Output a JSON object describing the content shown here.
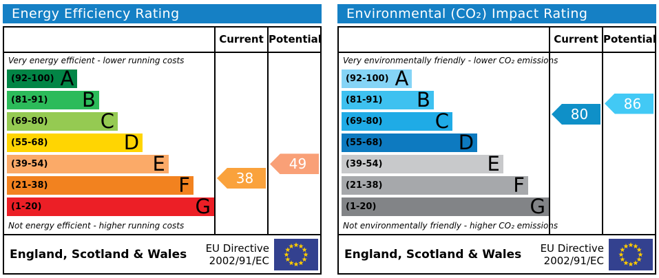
{
  "theme": {
    "header_bg": "#1580c5",
    "border": "#000000",
    "flag_bg": "#33418f",
    "flag_star": "#ffcc00"
  },
  "chart_data": [
    {
      "type": "bar",
      "orientation": "horizontal",
      "title": "Energy Efficiency Rating",
      "columns": {
        "current": "Current",
        "potential": "Potential"
      },
      "top_note": "Very energy efficient - lower running costs",
      "bottom_note": "Not energy efficient - higher running costs",
      "bands": [
        {
          "letter": "A",
          "range_label": "(92-100)",
          "min": 92,
          "max": 100,
          "color": "#028546",
          "length_pct": 34
        },
        {
          "letter": "B",
          "range_label": "(81-91)",
          "min": 81,
          "max": 91,
          "color": "#2cbb5a",
          "length_pct": 44.5
        },
        {
          "letter": "C",
          "range_label": "(69-80)",
          "min": 69,
          "max": 80,
          "color": "#95ca52",
          "length_pct": 53.5
        },
        {
          "letter": "D",
          "range_label": "(55-68)",
          "min": 55,
          "max": 68,
          "color": "#ffd502",
          "length_pct": 65.5
        },
        {
          "letter": "E",
          "range_label": "(39-54)",
          "min": 39,
          "max": 54,
          "color": "#fbaa68",
          "length_pct": 78
        },
        {
          "letter": "F",
          "range_label": "(21-38)",
          "min": 21,
          "max": 38,
          "color": "#f2821f",
          "length_pct": 90
        },
        {
          "letter": "G",
          "range_label": "(1-20)",
          "min": 1,
          "max": 20,
          "color": "#ec1f26",
          "length_pct": 100
        }
      ],
      "markers": {
        "current": {
          "label": "Current",
          "value": 38,
          "band": "F",
          "color": "#faa23c"
        },
        "potential": {
          "label": "Potential",
          "value": 49,
          "band": "E",
          "color": "#f9a077"
        }
      },
      "footer": {
        "region": "England, Scotland & Wales",
        "directive_line1": "EU Directive",
        "directive_line2": "2002/91/EC",
        "flag": "eu-flag"
      }
    },
    {
      "type": "bar",
      "orientation": "horizontal",
      "title": "Environmental (CO₂) Impact Rating",
      "columns": {
        "current": "Current",
        "potential": "Potential"
      },
      "top_note": "Very environmentally friendly - lower CO₂ emissions",
      "bottom_note": "Not environmentally friendly - higher CO₂ emissions",
      "bands": [
        {
          "letter": "A",
          "range_label": "(92-100)",
          "min": 92,
          "max": 100,
          "color": "#85d4f6",
          "length_pct": 34
        },
        {
          "letter": "B",
          "range_label": "(81-91)",
          "min": 81,
          "max": 91,
          "color": "#3ec1f0",
          "length_pct": 44.5
        },
        {
          "letter": "C",
          "range_label": "(69-80)",
          "min": 69,
          "max": 80,
          "color": "#1fabe6",
          "length_pct": 53.5
        },
        {
          "letter": "D",
          "range_label": "(55-68)",
          "min": 55,
          "max": 68,
          "color": "#0d7ac0",
          "length_pct": 65.5
        },
        {
          "letter": "E",
          "range_label": "(39-54)",
          "min": 39,
          "max": 54,
          "color": "#c8c9cb",
          "length_pct": 78
        },
        {
          "letter": "F",
          "range_label": "(21-38)",
          "min": 21,
          "max": 38,
          "color": "#a6a8ab",
          "length_pct": 90
        },
        {
          "letter": "G",
          "range_label": "(1-20)",
          "min": 1,
          "max": 20,
          "color": "#828487",
          "length_pct": 100
        }
      ],
      "markers": {
        "current": {
          "label": "Current",
          "value": 80,
          "band": "C",
          "color": "#0f90c8"
        },
        "potential": {
          "label": "Potential",
          "value": 86,
          "band": "B",
          "color": "#42c9f5"
        }
      },
      "footer": {
        "region": "England, Scotland & Wales",
        "directive_line1": "EU Directive",
        "directive_line2": "2002/91/EC",
        "flag": "eu-flag"
      }
    }
  ]
}
